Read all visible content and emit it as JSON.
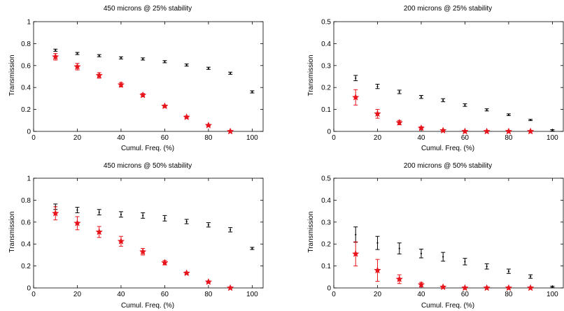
{
  "chart_data": [
    {
      "type": "scatter",
      "title": "450 microns @ 25% stability",
      "xlabel": "Cumul. Freq. (%)",
      "ylabel": "Transmission",
      "xlim": [
        0,
        105
      ],
      "ylim": [
        0,
        1
      ],
      "xticks": [
        "0",
        "20",
        "40",
        "60",
        "80",
        "100"
      ],
      "yticks": [
        "0",
        "0.2",
        "0.4",
        "0.6",
        "0.8",
        "1"
      ],
      "grid": false,
      "series": [
        {
          "color": "#000000",
          "marker": "dot-errorbar",
          "x": [
            10,
            20,
            30,
            40,
            50,
            60,
            70,
            80,
            90,
            100
          ],
          "y": [
            0.74,
            0.71,
            0.69,
            0.67,
            0.66,
            0.635,
            0.605,
            0.575,
            0.53,
            0.36
          ],
          "err": [
            0.01,
            0.01,
            0.01,
            0.01,
            0.01,
            0.01,
            0.01,
            0.01,
            0.01,
            0.01
          ]
        },
        {
          "color": "#e8141b",
          "marker": "star-errorbar",
          "x": [
            10,
            20,
            30,
            40,
            50,
            60,
            70,
            80,
            90
          ],
          "y": [
            0.68,
            0.59,
            0.51,
            0.425,
            0.33,
            0.23,
            0.13,
            0.055,
            0.0
          ],
          "err": [
            0.03,
            0.03,
            0.025,
            0.02,
            0.015,
            0.01,
            0.01,
            0.005,
            0.0
          ]
        }
      ]
    },
    {
      "type": "scatter",
      "title": "200 microns @ 25% stability",
      "xlabel": "Cumul. Freq. (%)",
      "ylabel": "Transmission",
      "xlim": [
        0,
        105
      ],
      "ylim": [
        0,
        0.5
      ],
      "xticks": [
        "0",
        "20",
        "40",
        "60",
        "80",
        "100"
      ],
      "yticks": [
        "0",
        "0.1",
        "0.2",
        "0.3",
        "0.4",
        "0.5"
      ],
      "grid": false,
      "series": [
        {
          "color": "#000000",
          "marker": "dot-errorbar",
          "x": [
            10,
            20,
            30,
            40,
            50,
            60,
            70,
            80,
            90,
            100
          ],
          "y": [
            0.243,
            0.205,
            0.18,
            0.157,
            0.142,
            0.12,
            0.098,
            0.076,
            0.052,
            0.005
          ],
          "err": [
            0.012,
            0.01,
            0.008,
            0.007,
            0.007,
            0.006,
            0.005,
            0.004,
            0.003,
            0.003
          ]
        },
        {
          "color": "#e8141b",
          "marker": "star-errorbar",
          "x": [
            10,
            20,
            30,
            40,
            50,
            60,
            70,
            80,
            90
          ],
          "y": [
            0.155,
            0.08,
            0.04,
            0.015,
            0.004,
            0.0,
            0.0,
            0.0,
            0.0
          ],
          "err": [
            0.035,
            0.02,
            0.01,
            0.006,
            0.003,
            0.0,
            0.0,
            0.0,
            0.0
          ]
        }
      ]
    },
    {
      "type": "scatter",
      "title": "450 microns @ 50% stability",
      "xlabel": "Cumul. Freq. (%)",
      "ylabel": "Transmission",
      "xlim": [
        0,
        105
      ],
      "ylim": [
        0,
        1
      ],
      "xticks": [
        "0",
        "20",
        "40",
        "60",
        "80",
        "100"
      ],
      "yticks": [
        "0",
        "0.2",
        "0.4",
        "0.6",
        "0.8",
        "1"
      ],
      "grid": false,
      "series": [
        {
          "color": "#000000",
          "marker": "dot-errorbar",
          "x": [
            10,
            20,
            30,
            40,
            50,
            60,
            70,
            80,
            90,
            100
          ],
          "y": [
            0.74,
            0.71,
            0.69,
            0.67,
            0.66,
            0.635,
            0.605,
            0.575,
            0.53,
            0.36
          ],
          "err": [
            0.025,
            0.025,
            0.025,
            0.025,
            0.025,
            0.025,
            0.02,
            0.02,
            0.02,
            0.01
          ]
        },
        {
          "color": "#e8141b",
          "marker": "star-errorbar",
          "x": [
            10,
            20,
            30,
            40,
            50,
            60,
            70,
            80,
            90
          ],
          "y": [
            0.68,
            0.59,
            0.51,
            0.425,
            0.33,
            0.23,
            0.135,
            0.055,
            0.0
          ],
          "err": [
            0.06,
            0.06,
            0.05,
            0.045,
            0.03,
            0.02,
            0.01,
            0.005,
            0.0
          ]
        }
      ]
    },
    {
      "type": "scatter",
      "title": "200 microns @ 50% stability",
      "xlabel": "Cumul. Freq. (%)",
      "ylabel": "Transmission",
      "xlim": [
        0,
        105
      ],
      "ylim": [
        0,
        0.5
      ],
      "xticks": [
        "0",
        "20",
        "40",
        "60",
        "80",
        "100"
      ],
      "yticks": [
        "0",
        "0.1",
        "0.2",
        "0.3",
        "0.4",
        "0.5"
      ],
      "grid": false,
      "series": [
        {
          "color": "#000000",
          "marker": "dot-errorbar",
          "x": [
            10,
            20,
            30,
            40,
            50,
            60,
            70,
            80,
            90,
            100
          ],
          "y": [
            0.243,
            0.205,
            0.18,
            0.157,
            0.142,
            0.12,
            0.098,
            0.076,
            0.052,
            0.005
          ],
          "err": [
            0.035,
            0.03,
            0.025,
            0.02,
            0.02,
            0.015,
            0.012,
            0.01,
            0.008,
            0.003
          ]
        },
        {
          "color": "#e8141b",
          "marker": "star-errorbar",
          "x": [
            10,
            20,
            30,
            40,
            50,
            60,
            70,
            80,
            90
          ],
          "y": [
            0.155,
            0.08,
            0.04,
            0.015,
            0.004,
            0.0,
            0.0,
            0.0,
            0.0
          ],
          "err": [
            0.055,
            0.05,
            0.02,
            0.01,
            0.004,
            0.0,
            0.0,
            0.0,
            0.0
          ]
        }
      ]
    }
  ]
}
